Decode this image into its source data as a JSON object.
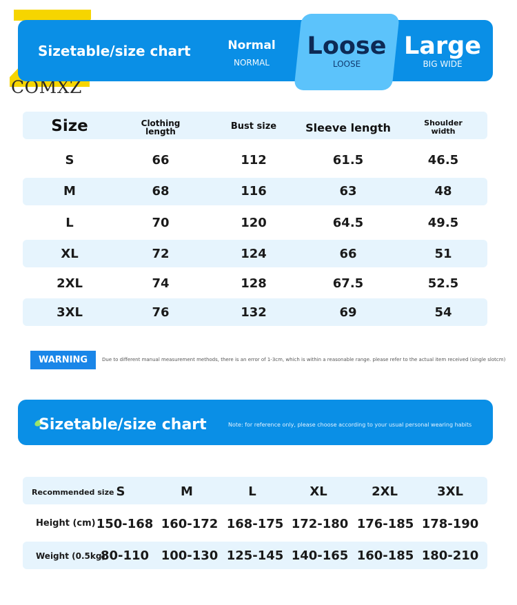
{
  "brand": {
    "logo_text": "COMXZ",
    "logo_colors": {
      "mark": "#f6d500",
      "shadow": "#1a1a1a"
    }
  },
  "header": {
    "title": "Sizetable/size chart",
    "fits": [
      {
        "label": "Normal",
        "sub": "NORMAL"
      },
      {
        "label": "Loose",
        "sub": "LOOSE",
        "selected": true
      },
      {
        "label": "Large",
        "sub": "BIG WIDE"
      }
    ],
    "colors": {
      "banner": "#0a8fe6",
      "selected": "#5cc3fb"
    }
  },
  "size_table": {
    "headers": {
      "size": "Size",
      "clothing_length": [
        "Clothing",
        "length"
      ],
      "bust": "Bust size",
      "sleeve": "Sleeve length",
      "shoulder": [
        "Shoulder",
        "width"
      ]
    },
    "rows": [
      {
        "size": "S",
        "length": "66",
        "bust": "112",
        "sleeve": "61.5",
        "shoulder": "46.5"
      },
      {
        "size": "M",
        "length": "68",
        "bust": "116",
        "sleeve": "63",
        "shoulder": "48"
      },
      {
        "size": "L",
        "length": "70",
        "bust": "120",
        "sleeve": "64.5",
        "shoulder": "49.5"
      },
      {
        "size": "XL",
        "length": "72",
        "bust": "124",
        "sleeve": "66",
        "shoulder": "51"
      },
      {
        "size": "2XL",
        "length": "74",
        "bust": "128",
        "sleeve": "67.5",
        "shoulder": "52.5"
      },
      {
        "size": "3XL",
        "length": "76",
        "bust": "132",
        "sleeve": "69",
        "shoulder": "54"
      }
    ]
  },
  "warning": {
    "label": "WARNING",
    "text": "Due to different manual measurement methods, there is an error of 1-3cm, which is within a reasonable range. please refer to the actual item received (single slotcm)"
  },
  "section2": {
    "title": "Sizetable/size chart",
    "note": "Note: for reference only, please choose according to your usual personal wearing habits"
  },
  "recommend": {
    "size_label": "Recommended size",
    "height_label": "Height (cm)",
    "weight_label": "Weight (0.5kg)",
    "sizes": [
      "S",
      "M",
      "L",
      "XL",
      "2XL",
      "3XL"
    ],
    "heights": [
      "150-168",
      "160-172",
      "168-175",
      "172-180",
      "176-185",
      "178-190"
    ],
    "weights": [
      "80-110",
      "100-130",
      "125-145",
      "140-165",
      "160-185",
      "180-210"
    ]
  }
}
